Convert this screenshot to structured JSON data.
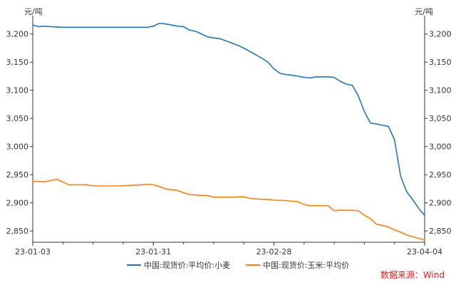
{
  "chart_data": {
    "type": "line",
    "left_unit": "元/吨",
    "right_unit": "元/吨",
    "y_ticks": [
      "3,200",
      "3,150",
      "3,100",
      "3,050",
      "3,000",
      "2,950",
      "2,900",
      "2,850"
    ],
    "ylim": [
      2830,
      3225
    ],
    "x_ticks": [
      "23-01-03",
      "23-01-31",
      "23-02-28",
      "23-04-04"
    ],
    "x_tick_values": [
      0,
      20,
      40,
      65
    ],
    "xlim": [
      0,
      65
    ],
    "grid": false,
    "legend_position": "bottom",
    "series": [
      {
        "name": "中国:现货价:平均价:小麦",
        "color": "#1f77b4",
        "points": [
          [
            0,
            3216
          ],
          [
            1,
            3213
          ],
          [
            2,
            3214
          ],
          [
            3,
            3213
          ],
          [
            5,
            3212
          ],
          [
            7,
            3212
          ],
          [
            10,
            3212
          ],
          [
            14,
            3212
          ],
          [
            19,
            3212
          ],
          [
            20,
            3214
          ],
          [
            21,
            3219
          ],
          [
            22,
            3218
          ],
          [
            24,
            3214
          ],
          [
            25,
            3213
          ],
          [
            26,
            3207
          ],
          [
            27,
            3205
          ],
          [
            28,
            3200
          ],
          [
            29,
            3195
          ],
          [
            30,
            3193
          ],
          [
            31,
            3192
          ],
          [
            32,
            3188
          ],
          [
            33,
            3184
          ],
          [
            34,
            3180
          ],
          [
            35,
            3175
          ],
          [
            36,
            3169
          ],
          [
            37,
            3163
          ],
          [
            38,
            3157
          ],
          [
            39,
            3150
          ],
          [
            40,
            3138
          ],
          [
            41,
            3130
          ],
          [
            42,
            3128
          ],
          [
            43,
            3127
          ],
          [
            44,
            3125
          ],
          [
            45,
            3123
          ],
          [
            46,
            3122
          ],
          [
            47,
            3124
          ],
          [
            48,
            3124
          ],
          [
            49,
            3124
          ],
          [
            50,
            3123
          ],
          [
            51,
            3116
          ],
          [
            52,
            3111
          ],
          [
            53,
            3109
          ],
          [
            54,
            3090
          ],
          [
            55,
            3062
          ],
          [
            56,
            3042
          ],
          [
            57,
            3040
          ],
          [
            59,
            3036
          ],
          [
            60,
            3012
          ],
          [
            61,
            2948
          ],
          [
            62,
            2920
          ],
          [
            63,
            2906
          ],
          [
            64,
            2890
          ],
          [
            65,
            2878
          ]
        ]
      },
      {
        "name": "中国:现货价:玉米:平均价",
        "color": "#ff7f0e",
        "points": [
          [
            0,
            2938
          ],
          [
            1,
            2938
          ],
          [
            2,
            2937
          ],
          [
            3,
            2940
          ],
          [
            4,
            2942
          ],
          [
            5,
            2937
          ],
          [
            6,
            2932
          ],
          [
            7,
            2932
          ],
          [
            9,
            2932
          ],
          [
            10,
            2930
          ],
          [
            12,
            2930
          ],
          [
            14,
            2930
          ],
          [
            18,
            2932
          ],
          [
            19,
            2933
          ],
          [
            20,
            2932
          ],
          [
            21,
            2929
          ],
          [
            22,
            2925
          ],
          [
            24,
            2922
          ],
          [
            25,
            2918
          ],
          [
            26,
            2915
          ],
          [
            27,
            2914
          ],
          [
            28,
            2913
          ],
          [
            29,
            2913
          ],
          [
            30,
            2910
          ],
          [
            31,
            2910
          ],
          [
            33,
            2910
          ],
          [
            35,
            2911
          ],
          [
            36,
            2908
          ],
          [
            37,
            2907
          ],
          [
            39,
            2906
          ],
          [
            40,
            2905
          ],
          [
            42,
            2904
          ],
          [
            44,
            2902
          ],
          [
            45,
            2897
          ],
          [
            46,
            2895
          ],
          [
            48,
            2895
          ],
          [
            49,
            2895
          ],
          [
            50,
            2886
          ],
          [
            51,
            2887
          ],
          [
            52,
            2887
          ],
          [
            54,
            2886
          ],
          [
            55,
            2878
          ],
          [
            56,
            2872
          ],
          [
            57,
            2862
          ],
          [
            58,
            2860
          ],
          [
            59,
            2857
          ],
          [
            60,
            2852
          ],
          [
            61,
            2848
          ],
          [
            62,
            2843
          ],
          [
            63,
            2840
          ],
          [
            64,
            2837
          ],
          [
            65,
            2834
          ]
        ]
      }
    ]
  },
  "source_note": "数据来源：Wind"
}
